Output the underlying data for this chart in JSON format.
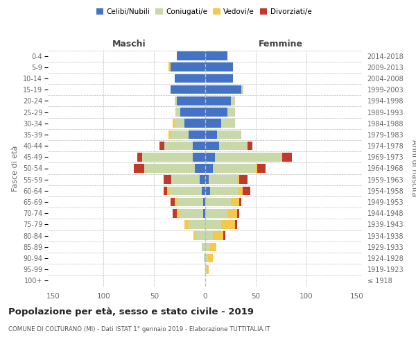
{
  "age_groups": [
    "100+",
    "95-99",
    "90-94",
    "85-89",
    "80-84",
    "75-79",
    "70-74",
    "65-69",
    "60-64",
    "55-59",
    "50-54",
    "45-49",
    "40-44",
    "35-39",
    "30-34",
    "25-29",
    "20-24",
    "15-19",
    "10-14",
    "5-9",
    "0-4"
  ],
  "birth_years": [
    "≤ 1918",
    "1919-1923",
    "1924-1928",
    "1929-1933",
    "1934-1938",
    "1939-1943",
    "1944-1948",
    "1949-1953",
    "1954-1958",
    "1959-1963",
    "1964-1968",
    "1969-1973",
    "1974-1978",
    "1979-1983",
    "1984-1988",
    "1989-1993",
    "1994-1998",
    "1999-2003",
    "2004-2008",
    "2009-2013",
    "2014-2018"
  ],
  "males": {
    "celibi": [
      0,
      0,
      0,
      0,
      0,
      0,
      2,
      2,
      3,
      5,
      10,
      12,
      12,
      16,
      20,
      24,
      28,
      34,
      30,
      34,
      28
    ],
    "coniugati": [
      0,
      0,
      1,
      3,
      9,
      16,
      24,
      26,
      32,
      28,
      50,
      50,
      28,
      18,
      10,
      5,
      2,
      0,
      0,
      0,
      0
    ],
    "vedovi": [
      0,
      0,
      0,
      0,
      2,
      4,
      2,
      2,
      2,
      0,
      0,
      0,
      0,
      2,
      2,
      0,
      0,
      0,
      0,
      2,
      0
    ],
    "divorziati": [
      0,
      0,
      0,
      0,
      0,
      0,
      4,
      4,
      4,
      8,
      10,
      5,
      5,
      0,
      0,
      0,
      0,
      0,
      0,
      0,
      0
    ]
  },
  "females": {
    "nubili": [
      0,
      0,
      0,
      0,
      0,
      0,
      0,
      0,
      5,
      4,
      8,
      10,
      14,
      12,
      16,
      22,
      26,
      36,
      28,
      28,
      22
    ],
    "coniugate": [
      0,
      2,
      3,
      5,
      8,
      16,
      22,
      26,
      28,
      28,
      42,
      66,
      28,
      24,
      14,
      8,
      4,
      2,
      0,
      0,
      0
    ],
    "vedove": [
      0,
      2,
      5,
      6,
      10,
      14,
      10,
      8,
      4,
      2,
      2,
      0,
      0,
      0,
      0,
      0,
      0,
      0,
      0,
      0,
      0
    ],
    "divorziate": [
      0,
      0,
      0,
      0,
      2,
      2,
      2,
      2,
      8,
      8,
      8,
      10,
      5,
      0,
      0,
      0,
      0,
      0,
      0,
      0,
      0
    ]
  },
  "colors": {
    "celibi_nubili": "#4472C4",
    "coniugati": "#C8D8A8",
    "vedovi": "#F5C84A",
    "divorziati": "#C0392B"
  },
  "title": "Popolazione per età, sesso e stato civile - 2019",
  "subtitle": "COMUNE DI COLTURANO (MI) - Dati ISTAT 1° gennaio 2019 - Elaborazione TUTTITALIA.IT",
  "xlabel_maschi": "Maschi",
  "xlabel_femmine": "Femmine",
  "ylabel_left": "Fasce di età",
  "ylabel_right": "Anni di nascita",
  "xlim": 155,
  "bg_color": "#ffffff",
  "grid_color": "#bbbbbb"
}
